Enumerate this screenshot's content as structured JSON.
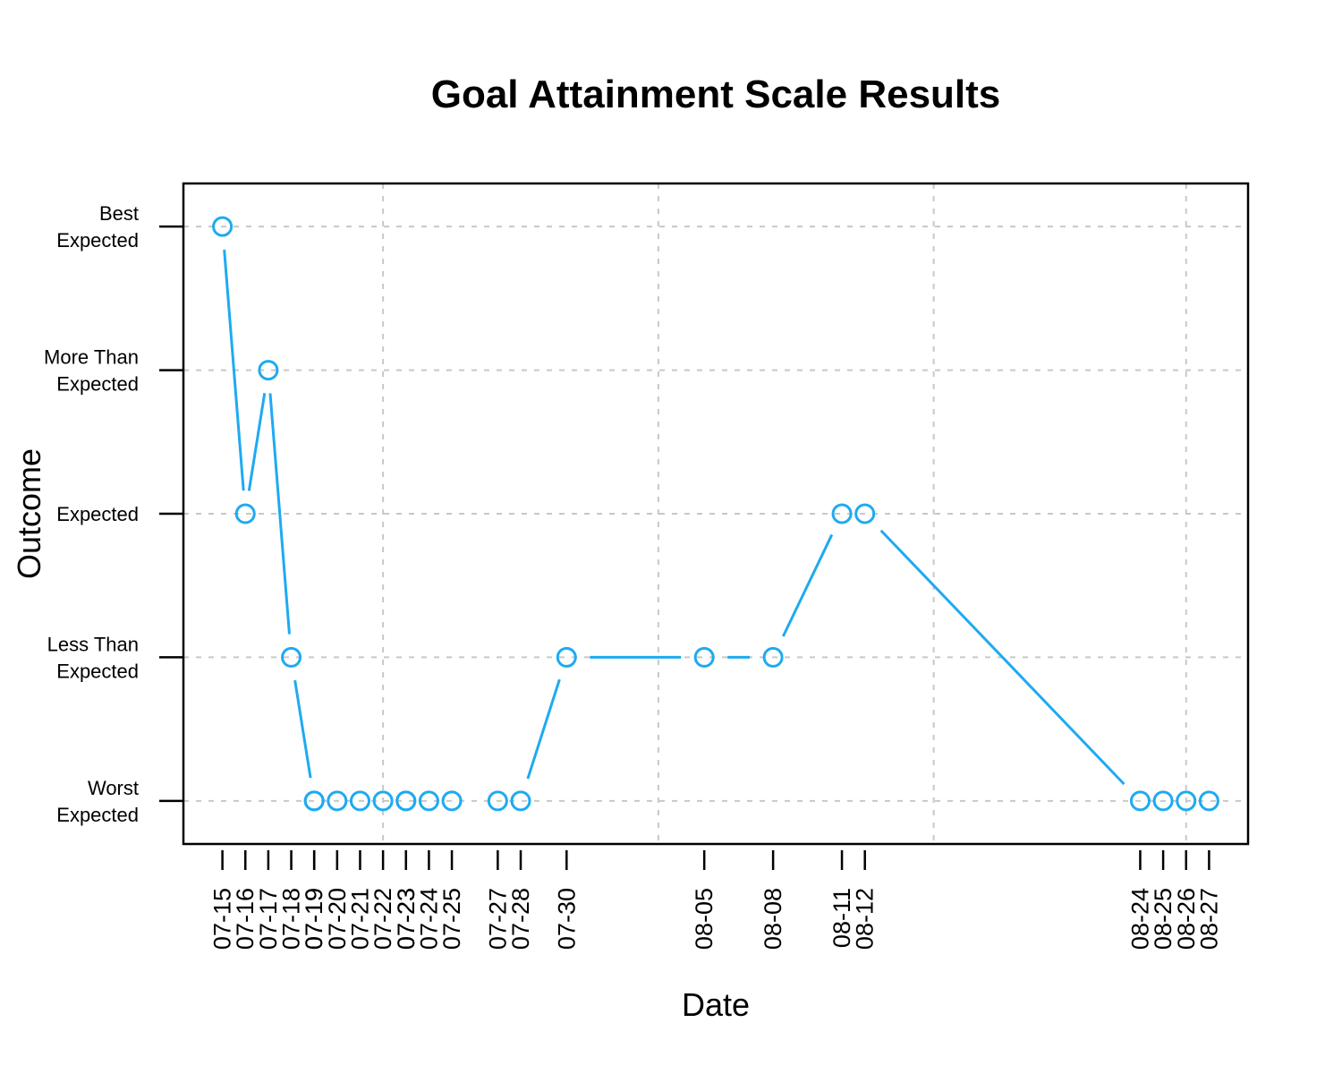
{
  "chart_data": {
    "type": "line",
    "title": "Goal Attainment Scale Results",
    "xlabel": "Date",
    "ylabel": "Outcome",
    "y_levels": [
      {
        "value": -2,
        "lines": [
          "Worst",
          "Expected"
        ]
      },
      {
        "value": -1,
        "lines": [
          "Less Than",
          "Expected"
        ]
      },
      {
        "value": 0,
        "lines": [
          "Expected"
        ]
      },
      {
        "value": 1,
        "lines": [
          "More Than",
          "Expected"
        ]
      },
      {
        "value": 2,
        "lines": [
          "Best",
          "Expected"
        ]
      }
    ],
    "ylim": [
      -2.3,
      2.3
    ],
    "x_dates": [
      "07-15",
      "07-16",
      "07-17",
      "07-18",
      "07-19",
      "07-19",
      "07-20",
      "07-21",
      "07-22",
      "07-23",
      "07-23",
      "07-24",
      "07-25",
      "07-27",
      "07-28",
      "07-30",
      "08-05",
      "08-08",
      "08-11",
      "08-12",
      "08-24",
      "08-25",
      "08-26",
      "08-27"
    ],
    "x_days": [
      15,
      16,
      17,
      18,
      19,
      19,
      20,
      21,
      22,
      23,
      23,
      24,
      25,
      27,
      28,
      30,
      36,
      39,
      42,
      43,
      55,
      56,
      57,
      58
    ],
    "values": [
      2,
      0,
      1,
      -1,
      -2,
      -2,
      -2,
      -2,
      -2,
      -2,
      -2,
      -2,
      -2,
      -2,
      -2,
      -1,
      -1,
      -1,
      0,
      0,
      -2,
      -2,
      -2,
      -2
    ],
    "xlim": [
      13.3,
      59.7
    ],
    "x_grid_days": [
      22,
      34,
      46,
      57
    ],
    "grid": true,
    "line_color": "#1eaaf1",
    "grid_color": "#c8c8c8"
  }
}
